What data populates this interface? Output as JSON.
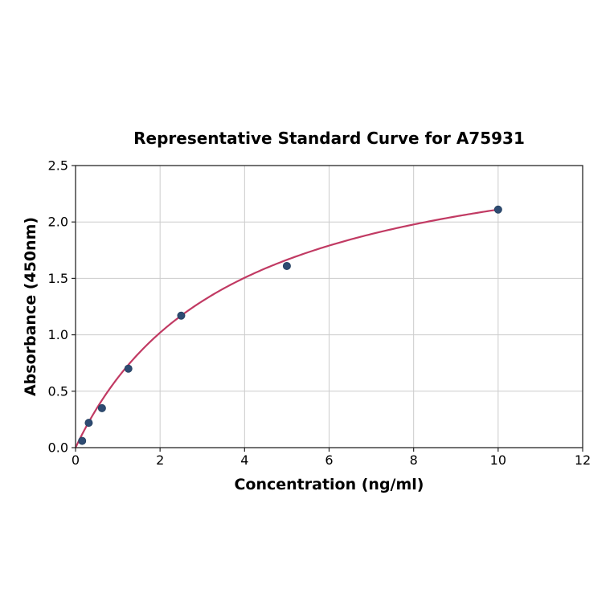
{
  "chart_data": {
    "type": "scatter",
    "title": "Representative Standard Curve for A75931",
    "xlabel": "Concentration (ng/ml)",
    "ylabel": "Absorbance (450nm)",
    "xlim": [
      0,
      12
    ],
    "ylim": [
      0,
      2.5
    ],
    "grid": true,
    "legend": "none",
    "xticks": [
      {
        "v": 0,
        "label": "0"
      },
      {
        "v": 2,
        "label": "2"
      },
      {
        "v": 4,
        "label": "4"
      },
      {
        "v": 6,
        "label": "6"
      },
      {
        "v": 8,
        "label": "8"
      },
      {
        "v": 10,
        "label": "10"
      },
      {
        "v": 12,
        "label": "12"
      }
    ],
    "yticks": [
      {
        "v": 0.0,
        "label": "0.0"
      },
      {
        "v": 0.5,
        "label": "0.5"
      },
      {
        "v": 1.0,
        "label": "1.0"
      },
      {
        "v": 1.5,
        "label": "1.5"
      },
      {
        "v": 2.0,
        "label": "2.0"
      },
      {
        "v": 2.5,
        "label": "2.5"
      }
    ],
    "points": [
      {
        "x": 0.156,
        "y": 0.06
      },
      {
        "x": 0.3125,
        "y": 0.22
      },
      {
        "x": 0.625,
        "y": 0.35
      },
      {
        "x": 1.25,
        "y": 0.7
      },
      {
        "x": 2.5,
        "y": 1.17
      },
      {
        "x": 5.0,
        "y": 1.61
      },
      {
        "x": 10.0,
        "y": 2.11
      }
    ],
    "fit_curve": {
      "model": "saturation",
      "vmax": 2.882,
      "km": 3.658,
      "x_start": 0.0,
      "x_end": 10.0
    },
    "colors": {
      "curve": "#c13a63",
      "marker_fill": "#2e4b72",
      "marker_edge": "#24405f",
      "grid": "#cccccc",
      "spine": "#262626",
      "background": "#ffffff"
    }
  }
}
